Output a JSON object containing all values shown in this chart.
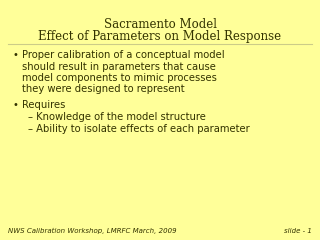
{
  "title_line1": "Sacramento Model",
  "title_line2": "Effect of Parameters on Model Response",
  "bg_color": "#FFFF99",
  "title_color": "#333300",
  "text_color": "#333300",
  "footer_left": "NWS Calibration Workshop, LMRFC March, 2009",
  "footer_right": "slide - 1",
  "bullet1_line1": "Proper calibration of a conceptual model",
  "bullet1_line2": "should result in parameters that cause",
  "bullet1_line3": "model components to mimic processes",
  "bullet1_line4": "they were designed to represent",
  "bullet2": "Requires",
  "sub1": "Knowledge of the model structure",
  "sub2": "Ability to isolate effects of each parameter",
  "title_fontsize": 8.5,
  "body_fontsize": 7.2,
  "footer_fontsize": 5.0,
  "divider_color": "#CCCC88",
  "bullet_symbol": "•",
  "dash_symbol": "–"
}
